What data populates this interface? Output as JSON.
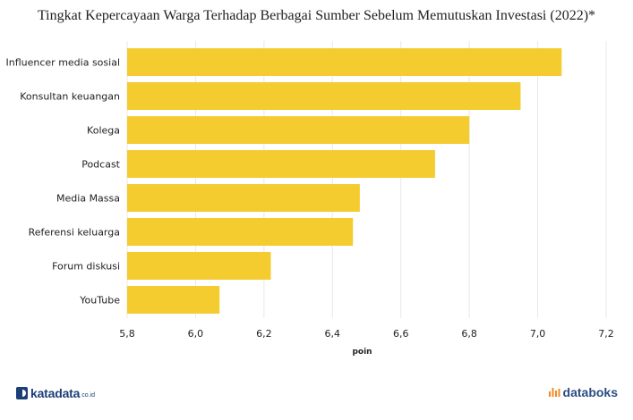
{
  "title": "Tingkat Kepercayaan Warga Terhadap Berbagai Sumber Sebelum Memutuskan Investasi (2022)*",
  "footer": {
    "left_brand": "katadata",
    "left_suffix": "co.id",
    "right_brand": "databoks"
  },
  "colors": {
    "bar": "#f4cc30",
    "grid": "#e8e8e8",
    "text": "#222222",
    "brand_blue": "#1c3f78",
    "brand_orange": "#f08a24"
  },
  "chart_data": {
    "type": "bar",
    "orientation": "horizontal",
    "categories": [
      "Influencer media sosial",
      "Konsultan keuangan",
      "Kolega",
      "Podcast",
      "Media Massa",
      "Referensi keluarga",
      "Forum diskusi",
      "YouTube"
    ],
    "values": [
      7.07,
      6.95,
      6.8,
      6.7,
      6.48,
      6.46,
      6.22,
      6.07
    ],
    "xlabel": "poin",
    "ylabel": "",
    "xlim": [
      5.8,
      7.2
    ],
    "xticks": [
      5.8,
      6.0,
      6.2,
      6.4,
      6.6,
      6.8,
      7.0,
      7.2
    ],
    "xtick_labels": [
      "5,8",
      "6,0",
      "6,2",
      "6,4",
      "6,6",
      "6,8",
      "7,0",
      "7,2"
    ],
    "grid": true,
    "legend": "none"
  }
}
